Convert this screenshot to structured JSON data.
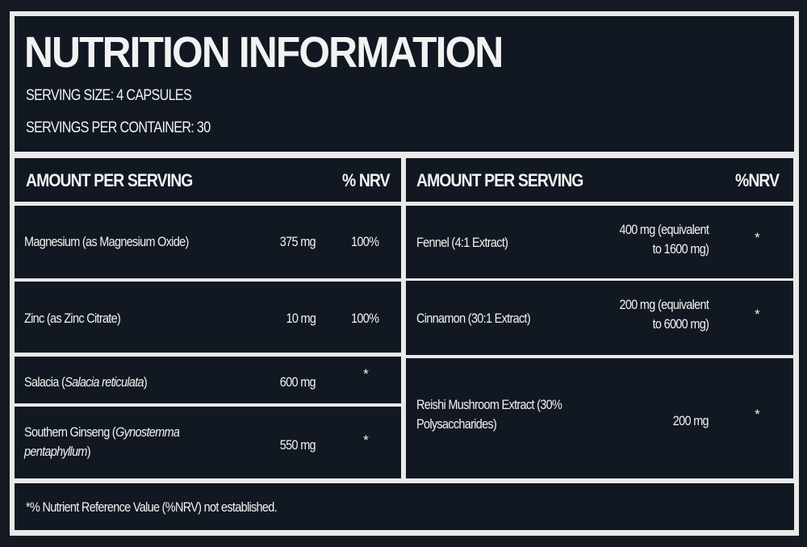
{
  "header": {
    "title": "NUTRITION INFORMATION",
    "serving_size": "SERVING SIZE: 4 CAPSULES",
    "servings_per_container": "SERVINGS PER CONTAINER: 30"
  },
  "left_table": {
    "header_label": "AMOUNT PER SERVING",
    "header_nrv": "% NRV",
    "rows": [
      {
        "name": "Magnesium (as Magnesium Oxide)",
        "amount": "375 mg",
        "nrv": "100%"
      },
      {
        "name": "Zinc (as Zinc Citrate)",
        "amount": "10 mg",
        "nrv": "100%"
      },
      {
        "name": "Salacia (",
        "latin": "Salacia reticulata",
        "close": ")",
        "amount": "600 mg",
        "nrv": "*"
      },
      {
        "name": "Southern Ginseng (",
        "latin": "Gynostemma pentaphyllum",
        "close": ")",
        "amount": "550 mg",
        "nrv": "*"
      }
    ]
  },
  "right_table": {
    "header_label": "AMOUNT PER SERVING",
    "header_nrv": "%NRV",
    "rows": [
      {
        "name": "Fennel (4:1 Extract)",
        "amount_line1": "400 mg (equivalent",
        "amount_line2": "to 1600 mg)",
        "nrv": "*"
      },
      {
        "name": "Cinnamon (30:1 Extract)",
        "amount_line1": "200 mg (equivalent",
        "amount_line2": "to 6000 mg)",
        "nrv": "*"
      },
      {
        "name_line1": "Reishi Mushroom Extract (30%",
        "name_line2": "Polysaccharides)",
        "amount": "200 mg",
        "nrv": "*"
      }
    ]
  },
  "footer": {
    "note": "*% Nutrient Reference Value (%NRV) not established."
  }
}
